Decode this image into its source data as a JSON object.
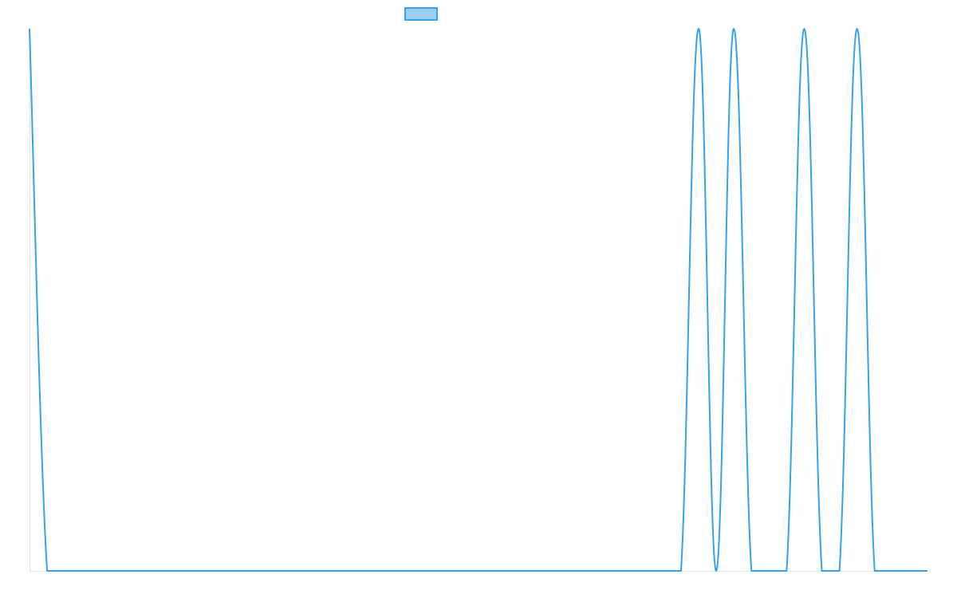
{
  "chart_data": {
    "type": "line",
    "title": "",
    "xlabel": "",
    "ylabel": "",
    "grid": false,
    "legend": {
      "position": "top-center",
      "entries": [
        {
          "name": ""
        }
      ]
    },
    "xlim": [
      0,
      51
    ],
    "ylim": [
      0,
      1
    ],
    "series": [
      {
        "name": "",
        "color": "#36a2eb",
        "fill": "#9ad0f5",
        "x": [
          0,
          1,
          2,
          3,
          4,
          5,
          6,
          7,
          8,
          9,
          10,
          11,
          12,
          13,
          14,
          15,
          16,
          17,
          18,
          19,
          20,
          21,
          22,
          23,
          24,
          25,
          26,
          27,
          28,
          29,
          30,
          31,
          32,
          33,
          34,
          35,
          36,
          37,
          38,
          39,
          40,
          41,
          42,
          43,
          44,
          45,
          46,
          47,
          48,
          49,
          50,
          51
        ],
        "values": [
          1,
          0,
          0,
          0,
          0,
          0,
          0,
          0,
          0,
          0,
          0,
          0,
          0,
          0,
          0,
          0,
          0,
          0,
          0,
          0,
          0,
          0,
          0,
          0,
          0,
          0,
          0,
          0,
          0,
          0,
          0,
          0,
          0,
          0,
          0,
          0,
          0,
          0,
          1,
          0,
          1,
          0,
          0,
          0,
          1,
          0,
          0,
          1,
          0,
          0,
          0,
          0
        ]
      }
    ]
  }
}
